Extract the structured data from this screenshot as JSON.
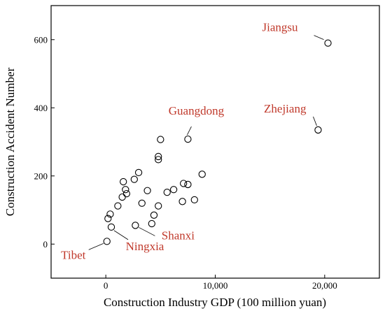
{
  "chart_data": {
    "type": "scatter",
    "xlabel": "Construction Industry GDP (100 million yuan)",
    "ylabel": "Construction Accident Number",
    "xlim": [
      -5000,
      25000
    ],
    "ylim": [
      -100,
      700
    ],
    "xticks": [
      0,
      10000,
      20000
    ],
    "xtick_labels": [
      "0",
      "10,000",
      "20,000"
    ],
    "yticks": [
      0,
      200,
      400,
      600
    ],
    "ytick_labels": [
      "0",
      "200",
      "400",
      "600"
    ],
    "marker": "open-circle",
    "grid": false,
    "annotation_color": "#c0392b",
    "points": [
      {
        "x": 20300,
        "y": 590
      },
      {
        "x": 19400,
        "y": 335
      },
      {
        "x": 7500,
        "y": 308
      },
      {
        "x": 5000,
        "y": 307
      },
      {
        "x": 4800,
        "y": 257
      },
      {
        "x": 4800,
        "y": 248
      },
      {
        "x": 8800,
        "y": 205
      },
      {
        "x": 3000,
        "y": 210
      },
      {
        "x": 2600,
        "y": 190
      },
      {
        "x": 1600,
        "y": 183
      },
      {
        "x": 1800,
        "y": 160
      },
      {
        "x": 1900,
        "y": 148
      },
      {
        "x": 1500,
        "y": 138
      },
      {
        "x": 1100,
        "y": 112
      },
      {
        "x": 3800,
        "y": 157
      },
      {
        "x": 5600,
        "y": 152
      },
      {
        "x": 6200,
        "y": 160
      },
      {
        "x": 7100,
        "y": 178
      },
      {
        "x": 7500,
        "y": 175
      },
      {
        "x": 3300,
        "y": 120
      },
      {
        "x": 4800,
        "y": 112
      },
      {
        "x": 7000,
        "y": 125
      },
      {
        "x": 8100,
        "y": 130
      },
      {
        "x": 4400,
        "y": 85
      },
      {
        "x": 4200,
        "y": 60
      },
      {
        "x": 2700,
        "y": 55
      },
      {
        "x": 400,
        "y": 88
      },
      {
        "x": 200,
        "y": 75
      },
      {
        "x": 500,
        "y": 50
      },
      {
        "x": 100,
        "y": 8
      }
    ],
    "annotations": [
      {
        "label": "Jiangsu",
        "x": 20300,
        "y": 590
      },
      {
        "label": "Zhejiang",
        "x": 19400,
        "y": 335
      },
      {
        "label": "Guangdong",
        "x": 7500,
        "y": 308
      },
      {
        "label": "Shanxi",
        "x": 2700,
        "y": 55
      },
      {
        "label": "Ningxia",
        "x": 500,
        "y": 50
      },
      {
        "label": "Tibet",
        "x": 100,
        "y": 8
      }
    ]
  }
}
